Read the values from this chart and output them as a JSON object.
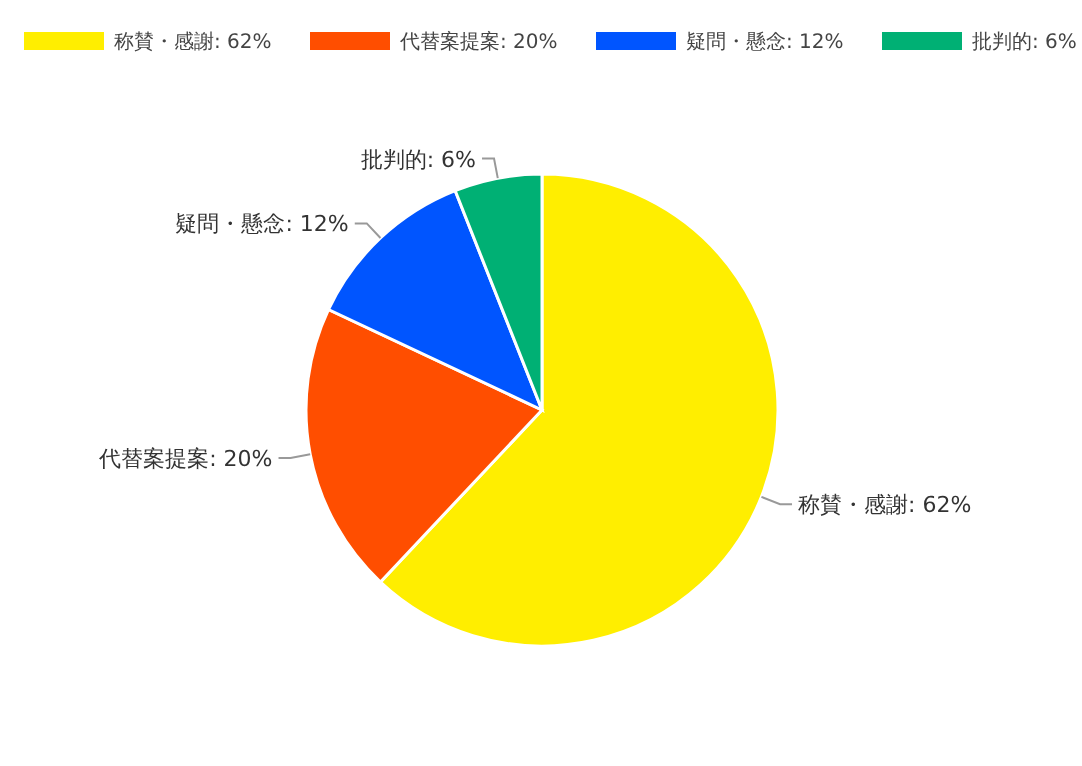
{
  "chart_data": {
    "type": "pie",
    "categories": [
      "称賛・感謝: 62%",
      "代替案提案: 20%",
      "疑問・懸念: 12%",
      "批判的: 6%"
    ],
    "values": [
      62,
      20,
      12,
      6
    ],
    "colors": [
      "#ffee00",
      "#ff4e00",
      "#0055ff",
      "#00b074"
    ],
    "legend": "top left"
  }
}
